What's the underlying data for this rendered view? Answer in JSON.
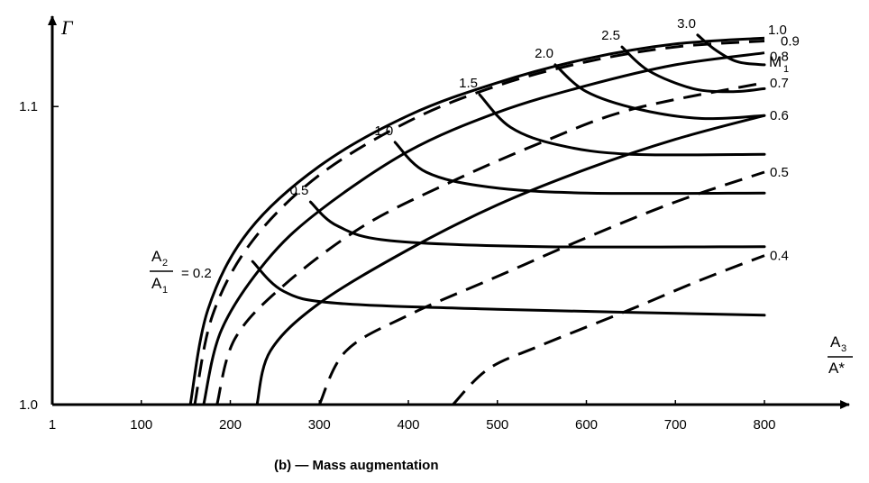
{
  "chart_data": {
    "type": "line",
    "caption": "(b) — Mass augmentation",
    "ylabel": "Γ",
    "xlabel": {
      "num": "A",
      "num_sub": "3",
      "den": "A*"
    },
    "xlim": [
      0,
      800
    ],
    "ylim": [
      1.0,
      1.13
    ],
    "x_ticks": [
      {
        "value": 0,
        "label": "1"
      },
      {
        "value": 100,
        "label": "100"
      },
      {
        "value": 200,
        "label": "200"
      },
      {
        "value": 300,
        "label": "300"
      },
      {
        "value": 400,
        "label": "400"
      },
      {
        "value": 500,
        "label": "500"
      },
      {
        "value": 600,
        "label": "600"
      },
      {
        "value": 700,
        "label": "700"
      },
      {
        "value": 800,
        "label": "800"
      }
    ],
    "y_ticks": [
      {
        "value": 1.0,
        "label": "1.0"
      },
      {
        "value": 1.1,
        "label": "1.1"
      }
    ],
    "m1_header": {
      "text": "M",
      "sub": "1"
    },
    "area_ratio_label": {
      "num": "A",
      "num_sub": "2",
      "den": "A",
      "den_sub": "1",
      "eq": "= 0.2"
    },
    "constant_area_ratio_curves": [
      {
        "label": "0.2",
        "points": [
          [
            225,
            1.048
          ],
          [
            260,
            1.038
          ],
          [
            320,
            1.034
          ],
          [
            500,
            1.032
          ],
          [
            800,
            1.03
          ]
        ]
      },
      {
        "label": "0.5",
        "points": [
          [
            290,
            1.068
          ],
          [
            320,
            1.06
          ],
          [
            380,
            1.055
          ],
          [
            550,
            1.053
          ],
          [
            800,
            1.053
          ]
        ]
      },
      {
        "label": "1.0",
        "points": [
          [
            385,
            1.088
          ],
          [
            420,
            1.078
          ],
          [
            490,
            1.073
          ],
          [
            600,
            1.071
          ],
          [
            800,
            1.071
          ]
        ]
      },
      {
        "label": "1.5",
        "points": [
          [
            480,
            1.104
          ],
          [
            515,
            1.093
          ],
          [
            570,
            1.087
          ],
          [
            650,
            1.084
          ],
          [
            800,
            1.084
          ]
        ]
      },
      {
        "label": "2.0",
        "points": [
          [
            565,
            1.114
          ],
          [
            600,
            1.105
          ],
          [
            660,
            1.099
          ],
          [
            730,
            1.096
          ],
          [
            800,
            1.097
          ]
        ]
      },
      {
        "label": "2.5",
        "points": [
          [
            640,
            1.12
          ],
          [
            670,
            1.112
          ],
          [
            720,
            1.106
          ],
          [
            765,
            1.105
          ],
          [
            800,
            1.106
          ]
        ]
      },
      {
        "label": "3.0",
        "points": [
          [
            725,
            1.124
          ],
          [
            745,
            1.119
          ],
          [
            770,
            1.115
          ],
          [
            800,
            1.114
          ]
        ]
      }
    ],
    "mach_curves": [
      {
        "label": "1.0",
        "style": "solid",
        "points": [
          [
            155,
            1.0
          ],
          [
            175,
            1.032
          ],
          [
            220,
            1.058
          ],
          [
            300,
            1.08
          ],
          [
            400,
            1.097
          ],
          [
            500,
            1.108
          ],
          [
            600,
            1.116
          ],
          [
            700,
            1.121
          ],
          [
            800,
            1.123
          ]
        ]
      },
      {
        "label": "0.9",
        "style": "dashed",
        "points": [
          [
            160,
            1.0
          ],
          [
            180,
            1.03
          ],
          [
            225,
            1.055
          ],
          [
            300,
            1.077
          ],
          [
            400,
            1.095
          ],
          [
            500,
            1.107
          ],
          [
            600,
            1.115
          ],
          [
            700,
            1.12
          ],
          [
            800,
            1.122
          ]
        ]
      },
      {
        "label": "0.8",
        "style": "solid",
        "points": [
          [
            170,
            1.0
          ],
          [
            190,
            1.025
          ],
          [
            240,
            1.048
          ],
          [
            300,
            1.065
          ],
          [
            400,
            1.085
          ],
          [
            500,
            1.098
          ],
          [
            600,
            1.107
          ],
          [
            700,
            1.114
          ],
          [
            800,
            1.118
          ]
        ]
      },
      {
        "label": "0.7",
        "style": "dashed",
        "points": [
          [
            185,
            1.0
          ],
          [
            205,
            1.022
          ],
          [
            260,
            1.04
          ],
          [
            350,
            1.06
          ],
          [
            450,
            1.075
          ],
          [
            550,
            1.088
          ],
          [
            650,
            1.099
          ],
          [
            800,
            1.108
          ]
        ]
      },
      {
        "label": "0.6",
        "style": "solid",
        "points": [
          [
            230,
            1.0
          ],
          [
            245,
            1.018
          ],
          [
            300,
            1.034
          ],
          [
            400,
            1.052
          ],
          [
            500,
            1.067
          ],
          [
            600,
            1.079
          ],
          [
            700,
            1.089
          ],
          [
            800,
            1.097
          ]
        ]
      },
      {
        "label": "0.5",
        "style": "dashed",
        "points": [
          [
            300,
            1.0
          ],
          [
            330,
            1.018
          ],
          [
            400,
            1.03
          ],
          [
            500,
            1.043
          ],
          [
            600,
            1.056
          ],
          [
            700,
            1.068
          ],
          [
            800,
            1.078
          ]
        ]
      },
      {
        "label": "0.4",
        "style": "dashed",
        "points": [
          [
            450,
            1.0
          ],
          [
            490,
            1.012
          ],
          [
            550,
            1.02
          ],
          [
            650,
            1.032
          ],
          [
            730,
            1.042
          ],
          [
            800,
            1.05
          ]
        ]
      }
    ]
  }
}
